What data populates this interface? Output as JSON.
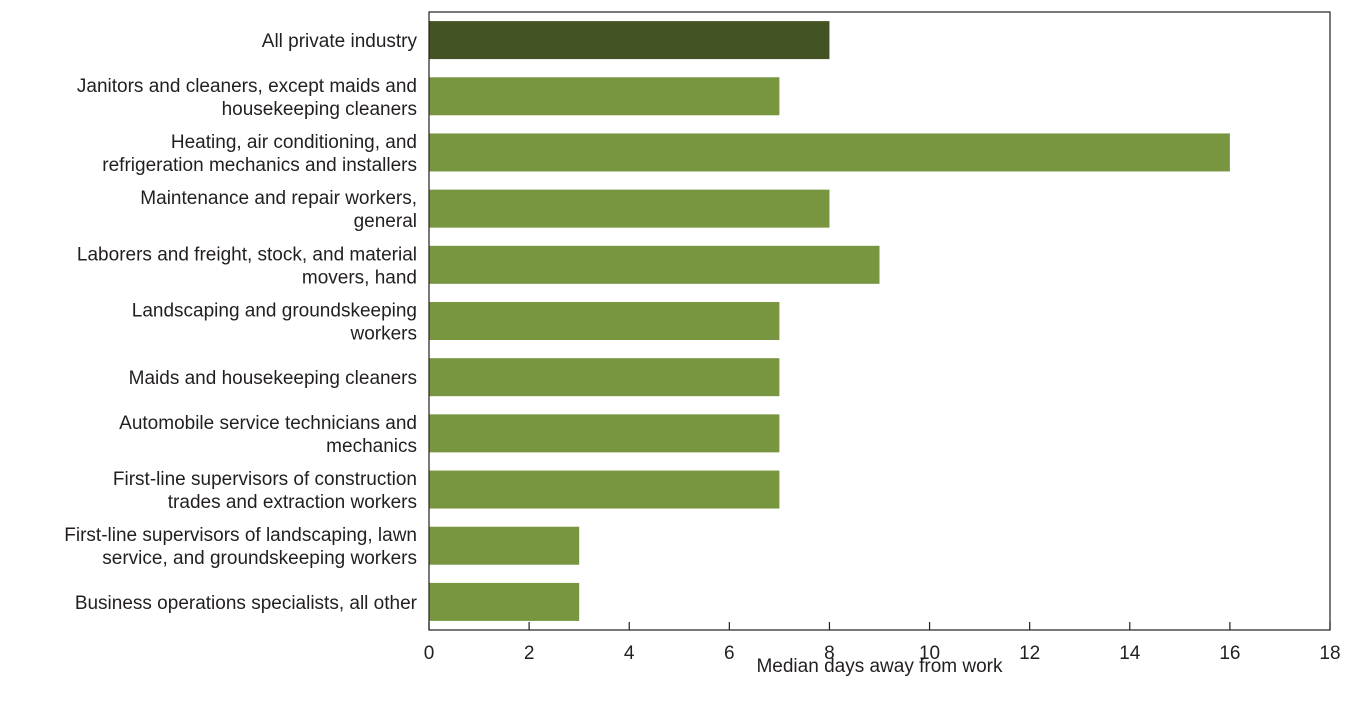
{
  "chart_data": {
    "type": "bar",
    "orientation": "horizontal",
    "title": "",
    "xlabel": "Median days away from work",
    "ylabel": "",
    "xlim": [
      0,
      18
    ],
    "xticks": [
      0,
      2,
      4,
      6,
      8,
      10,
      12,
      14,
      16,
      18
    ],
    "grid": false,
    "legend": "none",
    "categories": [
      [
        "All private industry"
      ],
      [
        "Janitors and cleaners, except maids and",
        "housekeeping cleaners"
      ],
      [
        "Heating, air conditioning, and",
        "refrigeration mechanics and installers"
      ],
      [
        "Maintenance and repair workers,",
        "general"
      ],
      [
        "Laborers and freight, stock, and material",
        "movers, hand"
      ],
      [
        "Landscaping and groundskeeping",
        "workers"
      ],
      [
        "Maids and housekeeping cleaners"
      ],
      [
        "Automobile service technicians and",
        "mechanics"
      ],
      [
        "First-line supervisors of construction",
        "trades and extraction workers"
      ],
      [
        "First-line supervisors of landscaping, lawn",
        "service, and groundskeeping workers"
      ],
      [
        "Business operations specialists, all other"
      ]
    ],
    "values": [
      8,
      7,
      16,
      8,
      9,
      7,
      7,
      7,
      7,
      3,
      3
    ],
    "colors": {
      "highlight": "#435323",
      "bar": "#77963f",
      "axis": "#231f20"
    }
  }
}
